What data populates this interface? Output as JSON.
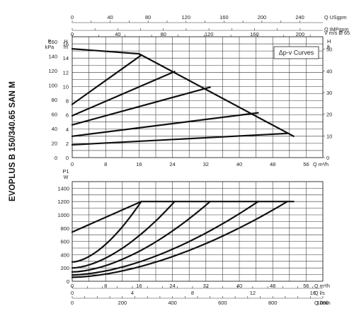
{
  "product_title": "EVOPLUS B 150/340.65 SAN M",
  "chart_data": [
    {
      "type": "line",
      "title": "",
      "legend_label": "Δp-v Curves",
      "xlabel_units": "Q m³/h",
      "top_axes": [
        {
          "label": "Q USgpm",
          "ticks": [
            "0",
            "40",
            "80",
            "120",
            "160",
            "200",
            "240"
          ]
        },
        {
          "label": "Q IMPgpm",
          "ticks": [
            "0",
            "40",
            "80",
            "120",
            "160",
            "200"
          ]
        },
        {
          "label": "V m/s Ø 65",
          "ticks": [
            "0",
            "2",
            "4",
            "6",
            "8"
          ]
        }
      ],
      "x_ticks": [
        "0",
        "8",
        "16",
        "24",
        "32",
        "40",
        "48",
        "56"
      ],
      "xlim": [
        0,
        60
      ],
      "left_axes": [
        {
          "label": "P",
          "unit": "kPa",
          "ticks": [
            "0",
            "20",
            "40",
            "60",
            "80",
            "100",
            "120",
            "140",
            "160"
          ]
        },
        {
          "label": "H",
          "unit": "m",
          "ticks": [
            "0",
            "2",
            "4",
            "6",
            "8",
            "10",
            "12",
            "14",
            "16"
          ]
        }
      ],
      "right_axis": {
        "label": "H",
        "unit": "ft",
        "ticks": [
          "0",
          "10",
          "20",
          "30",
          "40",
          "50"
        ]
      },
      "ylim": [
        0,
        17
      ],
      "series": [
        {
          "x": [
            0,
            16,
            53
          ],
          "y": [
            15.3,
            14.6,
            3.0
          ]
        },
        {
          "x": [
            0,
            16.5
          ],
          "y": [
            7.5,
            14.4
          ]
        },
        {
          "x": [
            0,
            24.5
          ],
          "y": [
            5.9,
            12.1
          ]
        },
        {
          "x": [
            0,
            33
          ],
          "y": [
            4.6,
            9.9
          ]
        },
        {
          "x": [
            0,
            44.5
          ],
          "y": [
            3.0,
            6.3
          ]
        },
        {
          "x": [
            0,
            51.5
          ],
          "y": [
            1.8,
            3.4
          ]
        }
      ]
    },
    {
      "type": "line",
      "title": "",
      "left_axis": {
        "label": "P1",
        "unit": "W",
        "ticks": [
          "0",
          "200",
          "400",
          "600",
          "800",
          "1000",
          "1200",
          "1400"
        ]
      },
      "x_ticks_m3h": [
        "0",
        "8",
        "16",
        "24",
        "32",
        "40",
        "48",
        "56"
      ],
      "x_ticks_ls": [
        "0",
        "4",
        "8",
        "12",
        "16"
      ],
      "x_ticks_lmin": [
        "0",
        "200",
        "400",
        "600",
        "800",
        "1000"
      ],
      "bottom_axes": [
        {
          "label": "Q m³/h"
        },
        {
          "label": "Q l/s"
        },
        {
          "label": "Q l/min"
        }
      ],
      "xlim": [
        0,
        60
      ],
      "ylim": [
        0,
        1500
      ],
      "series": [
        {
          "x": [
            0,
            16.5
          ],
          "y": [
            740,
            1200
          ],
          "kind": "linear"
        },
        {
          "x": [
            0,
            16.5
          ],
          "y": [
            290,
            1200
          ],
          "kind": "curve"
        },
        {
          "x": [
            0,
            24.5
          ],
          "y": [
            200,
            1200
          ],
          "kind": "curve"
        },
        {
          "x": [
            0,
            33
          ],
          "y": [
            140,
            1200
          ],
          "kind": "curve"
        },
        {
          "x": [
            0,
            44.5
          ],
          "y": [
            95,
            1200
          ],
          "kind": "curve"
        },
        {
          "x": [
            0,
            51.5
          ],
          "y": [
            60,
            1200
          ],
          "kind": "curve"
        },
        {
          "x": [
            16.5,
            53
          ],
          "y": [
            1200,
            1200
          ],
          "kind": "linear"
        }
      ]
    }
  ]
}
